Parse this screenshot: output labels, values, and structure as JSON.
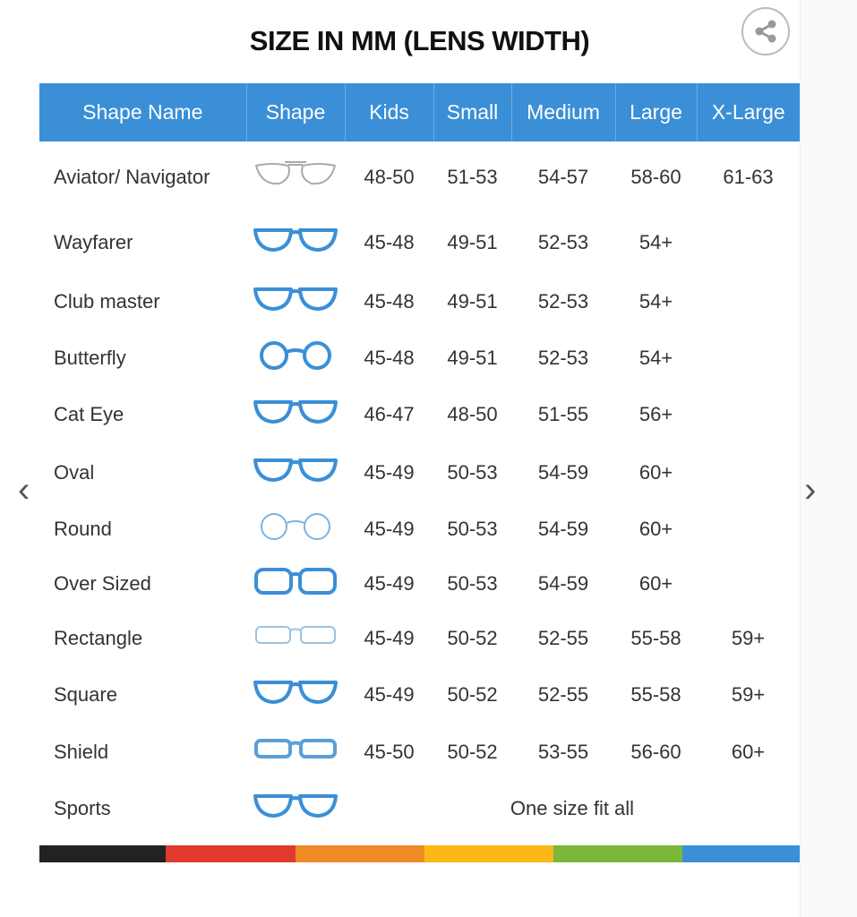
{
  "title": "SIZE IN MM (LENS WIDTH)",
  "share_icon": "share-icon",
  "headers": [
    "Shape Name",
    "Shape",
    "Kids",
    "Small",
    "Medium",
    "Large",
    "X-Large"
  ],
  "rows": [
    {
      "name": "Aviator/ Navigator",
      "icon": "aviator-glasses-icon",
      "color": "#aaaaaa",
      "kids": "48-50",
      "small": "51-53",
      "medium": "54-57",
      "large": "58-60",
      "xlarge": "61-63"
    },
    {
      "name": "Wayfarer",
      "icon": "wayfarer-glasses-icon",
      "color": "#3b8fd6",
      "kids": "45-48",
      "small": "49-51",
      "medium": "52-53",
      "large": "54+",
      "xlarge": ""
    },
    {
      "name": "Club master",
      "icon": "clubmaster-glasses-icon",
      "color": "#3b8fd6",
      "kids": "45-48",
      "small": "49-51",
      "medium": "52-53",
      "large": "54+",
      "xlarge": ""
    },
    {
      "name": "Butterfly",
      "icon": "butterfly-glasses-icon",
      "color": "#3b8fd6",
      "kids": "45-48",
      "small": "49-51",
      "medium": "52-53",
      "large": "54+",
      "xlarge": ""
    },
    {
      "name": "Cat Eye",
      "icon": "cat-eye-glasses-icon",
      "color": "#3b8fd6",
      "kids": "46-47",
      "small": "48-50",
      "medium": "51-55",
      "large": "56+",
      "xlarge": ""
    },
    {
      "name": "Oval",
      "icon": "oval-glasses-icon",
      "color": "#3b8fd6",
      "kids": "45-49",
      "small": "50-53",
      "medium": "54-59",
      "large": "60+",
      "xlarge": ""
    },
    {
      "name": "Round",
      "icon": "round-glasses-icon",
      "color": "#7fb3dd",
      "kids": "45-49",
      "small": "50-53",
      "medium": "54-59",
      "large": "60+",
      "xlarge": ""
    },
    {
      "name": "Over Sized",
      "icon": "oversized-glasses-icon",
      "color": "#3b8fd6",
      "kids": "45-49",
      "small": "50-53",
      "medium": "54-59",
      "large": "60+",
      "xlarge": ""
    },
    {
      "name": "Rectangle",
      "icon": "rectangle-glasses-icon",
      "color": "#9cc3e0",
      "kids": "45-49",
      "small": "50-52",
      "medium": "52-55",
      "large": "55-58",
      "xlarge": "59+"
    },
    {
      "name": "Square",
      "icon": "square-glasses-icon",
      "color": "#3b8fd6",
      "kids": "45-49",
      "small": "50-52",
      "medium": "52-55",
      "large": "55-58",
      "xlarge": "59+"
    },
    {
      "name": "Shield",
      "icon": "shield-glasses-icon",
      "color": "#5a9fd8",
      "kids": "45-50",
      "small": "50-52",
      "medium": "53-55",
      "large": "56-60",
      "xlarge": "60+"
    },
    {
      "name": "Sports",
      "icon": "sports-glasses-icon",
      "color": "#3b8fd6",
      "span_text": "One size fit all"
    }
  ],
  "color_bar": [
    "#222222",
    "#e03a2f",
    "#f08a24",
    "#fbb817",
    "#7ab83a",
    "#3b8fd6"
  ],
  "header_color": "#3b8fd6",
  "nav": {
    "prev_icon": "chevron-left-icon",
    "next_icon": "chevron-right-icon"
  }
}
